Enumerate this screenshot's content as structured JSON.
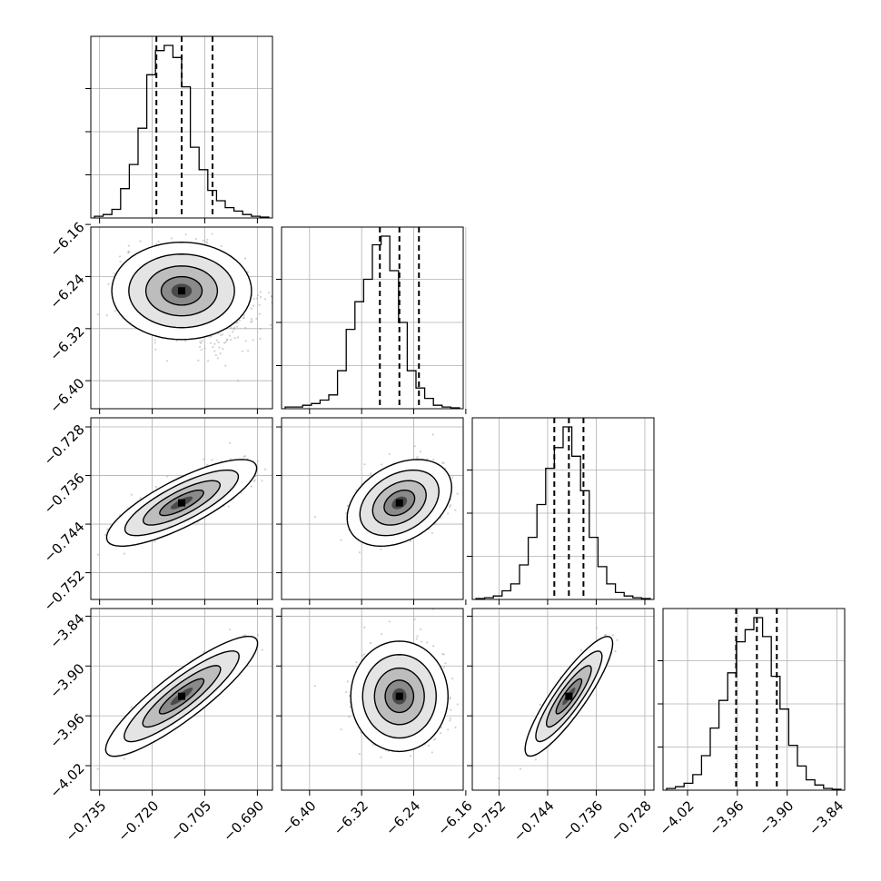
{
  "chart_data": {
    "type": "corner",
    "parameters": [
      {
        "index": 0,
        "median": -0.7116,
        "q16": -0.7188,
        "q84": -0.7028,
        "sd": 0.0072,
        "range": [
          -0.7375,
          -0.6857
        ],
        "ticks": [
          "−0.735",
          "−0.720",
          "−0.705",
          "−0.690"
        ],
        "tick_values": [
          -0.735,
          -0.72,
          -0.705,
          -0.69
        ],
        "hist": [
          0.01,
          0.02,
          0.05,
          0.17,
          0.31,
          0.52,
          0.83,
          0.97,
          1.0,
          0.93,
          0.76,
          0.41,
          0.28,
          0.16,
          0.1,
          0.06,
          0.04,
          0.02,
          0.01,
          0.005
        ]
      },
      {
        "index": 1,
        "median": -6.262,
        "q16": -6.292,
        "q84": -6.232,
        "sd": 0.027,
        "range": [
          -6.443,
          -6.164
        ],
        "ticks": [
          "−6.40",
          "−6.32",
          "−6.24",
          "−6.16"
        ],
        "tick_values": [
          -6.4,
          -6.32,
          -6.24,
          -6.16
        ],
        "hist": [
          0.01,
          0.01,
          0.02,
          0.03,
          0.05,
          0.08,
          0.22,
          0.46,
          0.62,
          0.75,
          0.95,
          1.0,
          0.8,
          0.5,
          0.22,
          0.12,
          0.06,
          0.02,
          0.01,
          0.005
        ]
      },
      {
        "index": 2,
        "median": -0.7405,
        "q16": -0.7429,
        "q84": -0.7381,
        "sd": 0.0024,
        "range": [
          -0.7564,
          -0.7265
        ],
        "ticks": [
          "−0.752",
          "−0.744",
          "−0.736",
          "−0.728"
        ],
        "tick_values": [
          -0.752,
          -0.744,
          -0.736,
          -0.728
        ],
        "hist": [
          0.005,
          0.01,
          0.02,
          0.05,
          0.09,
          0.2,
          0.36,
          0.55,
          0.76,
          0.88,
          1.0,
          0.83,
          0.63,
          0.36,
          0.19,
          0.09,
          0.04,
          0.02,
          0.01,
          0.005
        ]
      },
      {
        "index": 3,
        "median": -3.9365,
        "q16": -3.9615,
        "q84": -3.9125,
        "sd": 0.024,
        "range": [
          -4.0495,
          -3.8308
        ],
        "ticks": [
          "−4.02",
          "−3.96",
          "−3.90",
          "−3.84"
        ],
        "tick_values": [
          -4.02,
          -3.96,
          -3.9,
          -3.84
        ],
        "hist": [
          0.01,
          0.02,
          0.04,
          0.09,
          0.2,
          0.36,
          0.52,
          0.68,
          0.86,
          0.93,
          1.0,
          0.89,
          0.66,
          0.47,
          0.26,
          0.14,
          0.06,
          0.03,
          0.01,
          0.005
        ]
      }
    ],
    "pairs": [
      {
        "x": 0,
        "y": 1,
        "rho": -0.05,
        "tail": [
          0.3,
          0.5
        ]
      },
      {
        "x": 0,
        "y": 2,
        "rho": 0.8,
        "tail": [
          0,
          0
        ]
      },
      {
        "x": 1,
        "y": 2,
        "rho": 0.35,
        "tail": [
          0,
          0
        ]
      },
      {
        "x": 0,
        "y": 3,
        "rho": 0.93,
        "tail": [
          0,
          0
        ]
      },
      {
        "x": 1,
        "y": 3,
        "rho": 0.05,
        "tail": [
          0,
          0
        ]
      },
      {
        "x": 2,
        "y": 3,
        "rho": 0.92,
        "tail": [
          0,
          0
        ]
      }
    ],
    "hist_yticks": [
      0.25,
      0.5,
      0.75
    ],
    "contour_levels_sigma": [
      0.5,
      1.0,
      1.5,
      2.0
    ],
    "grid": true,
    "colors": {
      "contour": "#000000",
      "points": "#999999",
      "dashed": "#000000",
      "grid": "#b0b0b0"
    }
  }
}
